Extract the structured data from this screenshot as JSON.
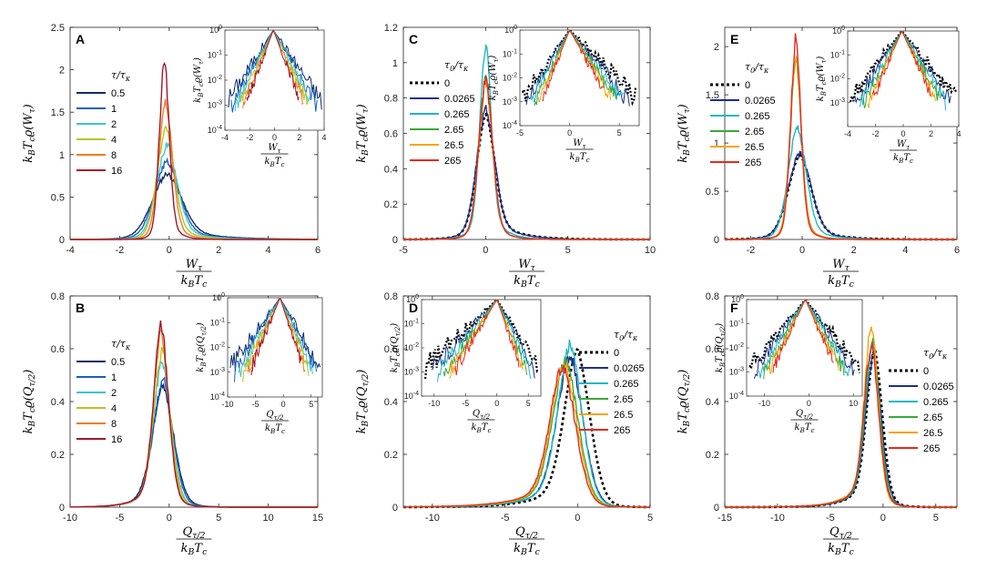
{
  "colors": {
    "series_tau": [
      "#0d2a6b",
      "#1560bd",
      "#3ec3d8",
      "#b9c41e",
      "#f07c1c",
      "#a3142a"
    ],
    "series_tau0": [
      "#000000",
      "#1a2f8c",
      "#1fb7c4",
      "#3aa83a",
      "#f5a40c",
      "#e8291c"
    ]
  },
  "labels": {
    "W_num": "W",
    "W_sub": "τ",
    "Q_num": "Q",
    "Q_sub": "τ/2",
    "den": "k",
    "den_sub1": "B",
    "den_mid": "T",
    "den_sub2": "c",
    "ylab_W": "kBTcϱ(Wτ)",
    "ylab_Q": "kBTcϱ(Qτ/2)",
    "legend_tau": "τ/τκ",
    "legend_tau0": "τ0/τκ"
  },
  "chart_data": [
    {
      "id": "A",
      "type": "line",
      "variable": "W",
      "xlim": [
        -4,
        6
      ],
      "xticks": [
        -4,
        -2,
        0,
        2,
        4,
        6
      ],
      "ylim": [
        0,
        2.5
      ],
      "yticks": [
        0,
        0.5,
        1,
        1.5,
        2,
        2.5
      ],
      "ylabel": "kBTcϱ(Wτ)",
      "xlabel": "Wτ / kBTc",
      "legend_title": "τ/τκ",
      "series": [
        {
          "name": "0.5",
          "peak_x": -0.1,
          "peak_y": 0.78,
          "width": 0.6,
          "tail_right": 1.4,
          "tail_left": 0.7
        },
        {
          "name": "1",
          "peak_x": -0.1,
          "peak_y": 0.93,
          "width": 0.5,
          "tail_right": 1.1,
          "tail_left": 0.6
        },
        {
          "name": "2",
          "peak_x": -0.1,
          "peak_y": 1.12,
          "width": 0.42,
          "tail_right": 0.9,
          "tail_left": 0.5
        },
        {
          "name": "4",
          "peak_x": -0.15,
          "peak_y": 1.32,
          "width": 0.35,
          "tail_right": 0.7,
          "tail_left": 0.4
        },
        {
          "name": "8",
          "peak_x": -0.15,
          "peak_y": 1.62,
          "width": 0.28,
          "tail_right": 0.5,
          "tail_left": 0.35
        },
        {
          "name": "16",
          "peak_x": -0.2,
          "peak_y": 2.15,
          "width": 0.2,
          "tail_right": 0.35,
          "tail_left": 0.25
        }
      ],
      "inset": {
        "xlim": [
          -4,
          4
        ],
        "xticks": [
          -4,
          -2,
          0,
          2,
          4
        ],
        "ylim_log": [
          -4,
          0
        ],
        "yticks": [
          "10^{0}",
          "10^{-1}",
          "10^{-2}",
          "10^{-3}",
          "10^{-4}"
        ],
        "ylabel": "kBTcϱ(Wτ)",
        "xlabel": "Wτ / kBTc"
      }
    },
    {
      "id": "B",
      "type": "line",
      "variable": "Q",
      "xlim": [
        -10,
        15
      ],
      "xticks": [
        -10,
        -5,
        0,
        5,
        10,
        15
      ],
      "ylim": [
        0,
        0.8
      ],
      "yticks": [
        0,
        0.2,
        0.4,
        0.6,
        0.8
      ],
      "ylabel": "kBTcϱ(Qτ/2)",
      "xlabel": "Qτ/2 / kBTc",
      "legend_title": "τ/τκ",
      "series": [
        {
          "name": "0.5",
          "peak_x": -0.6,
          "peak_y": 0.46,
          "width": 1.1,
          "tail_right": 1.3,
          "tail_left": 1.9
        },
        {
          "name": "1",
          "peak_x": -0.6,
          "peak_y": 0.49,
          "width": 1.0,
          "tail_right": 1.2,
          "tail_left": 1.8
        },
        {
          "name": "2",
          "peak_x": -0.7,
          "peak_y": 0.56,
          "width": 0.9,
          "tail_right": 1.1,
          "tail_left": 1.7
        },
        {
          "name": "4",
          "peak_x": -0.7,
          "peak_y": 0.6,
          "width": 0.85,
          "tail_right": 1.0,
          "tail_left": 1.7
        },
        {
          "name": "8",
          "peak_x": -0.8,
          "peak_y": 0.66,
          "width": 0.8,
          "tail_right": 1.0,
          "tail_left": 1.6
        },
        {
          "name": "16",
          "peak_x": -0.8,
          "peak_y": 0.7,
          "width": 0.75,
          "tail_right": 1.0,
          "tail_left": 1.6
        }
      ],
      "inset": {
        "xlim": [
          -10,
          7
        ],
        "xticks": [
          -10,
          -5,
          0,
          5
        ],
        "ylim_log": [
          -4,
          0
        ],
        "yticks": [
          "10^{0}",
          "10^{-1}",
          "10^{-2}",
          "10^{-3}",
          "10^{-4}"
        ],
        "ylabel": "kBTcϱ(Qτ/2)",
        "xlabel": "Qτ/2 / kBTc"
      }
    },
    {
      "id": "C",
      "type": "line",
      "variable": "W",
      "xlim": [
        -5,
        10
      ],
      "xticks": [
        -5,
        0,
        5,
        10
      ],
      "ylim": [
        0,
        1.2
      ],
      "yticks": [
        0,
        0.2,
        0.4,
        0.6,
        0.8,
        1,
        1.2
      ],
      "ylabel": "kBTcϱ(Wτ)",
      "xlabel": "Wτ / kBTc",
      "legend_title": "τ0/τκ",
      "series": [
        {
          "name": "0",
          "peak_x": 0.0,
          "peak_y": 0.71,
          "width": 0.55,
          "tail_right": 1.4,
          "tail_left": 0.8,
          "dashed": true
        },
        {
          "name": "0.0265",
          "peak_x": 0.0,
          "peak_y": 0.74,
          "width": 0.55,
          "tail_right": 1.3,
          "tail_left": 0.8
        },
        {
          "name": "0.265",
          "peak_x": 0.0,
          "peak_y": 1.1,
          "width": 0.35,
          "tail_right": 0.8,
          "tail_left": 0.6
        },
        {
          "name": "2.65",
          "peak_x": 0.0,
          "peak_y": 0.93,
          "width": 0.42,
          "tail_right": 0.7,
          "tail_left": 0.55
        },
        {
          "name": "26.5",
          "peak_x": 0.0,
          "peak_y": 0.9,
          "width": 0.42,
          "tail_right": 0.7,
          "tail_left": 0.55
        },
        {
          "name": "265",
          "peak_x": 0.0,
          "peak_y": 0.92,
          "width": 0.42,
          "tail_right": 0.7,
          "tail_left": 0.55
        }
      ],
      "inset": {
        "xlim": [
          -5,
          7
        ],
        "xticks": [
          -5,
          0,
          5
        ],
        "ylim_log": [
          -4,
          0
        ],
        "yticks": [
          "10^{0}",
          "10^{-1}",
          "10^{-2}",
          "10^{-3}",
          "10^{-4}"
        ],
        "ylabel": "kBTcϱ(Wτ)",
        "xlabel": "Wτ / kBTc"
      }
    },
    {
      "id": "D",
      "type": "line",
      "variable": "Q",
      "xlim": [
        -12,
        5
      ],
      "xticks": [
        -10,
        -5,
        0,
        5
      ],
      "ylim": [
        0,
        0.8
      ],
      "yticks": [
        0,
        0.2,
        0.4,
        0.6,
        0.8
      ],
      "ylabel": "kBTcϱ(Qτ/2)",
      "xlabel": "Qτ/2 / kBTc",
      "legend_title": "τ0/τκ",
      "series": [
        {
          "name": "0",
          "peak_x": 0.0,
          "peak_y": 0.6,
          "width": 0.9,
          "tail_right": 0.8,
          "tail_left": 2.0,
          "dashed": true
        },
        {
          "name": "0.0265",
          "peak_x": -0.5,
          "peak_y": 0.58,
          "width": 0.9,
          "tail_right": 0.9,
          "tail_left": 2.0
        },
        {
          "name": "0.265",
          "peak_x": -0.5,
          "peak_y": 0.62,
          "width": 0.85,
          "tail_right": 0.9,
          "tail_left": 2.0
        },
        {
          "name": "2.65",
          "peak_x": -0.8,
          "peak_y": 0.56,
          "width": 0.9,
          "tail_right": 0.9,
          "tail_left": 2.1
        },
        {
          "name": "26.5",
          "peak_x": -0.9,
          "peak_y": 0.55,
          "width": 0.9,
          "tail_right": 0.9,
          "tail_left": 2.2
        },
        {
          "name": "265",
          "peak_x": -1.0,
          "peak_y": 0.54,
          "width": 0.9,
          "tail_right": 0.9,
          "tail_left": 2.3
        }
      ],
      "inset": {
        "xlim": [
          -12,
          7
        ],
        "xticks": [
          -10,
          -5,
          0,
          5
        ],
        "ylim_log": [
          -4,
          0
        ],
        "yticks": [
          "10^{0}",
          "10^{-1}",
          "10^{-2}",
          "10^{-3}",
          "10^{-4}"
        ],
        "ylabel": "kBTcϱ(Qτ/2)",
        "xlabel": "Qτ/2 / kBTc"
      }
    },
    {
      "id": "E",
      "type": "line",
      "variable": "W",
      "xlim": [
        -3,
        6
      ],
      "xticks": [
        -2,
        0,
        2,
        4,
        6
      ],
      "ylim": [
        0,
        2.2
      ],
      "yticks": [
        0,
        0.5,
        1,
        1.5,
        2
      ],
      "ylabel": "kBTcϱ(Wτ)",
      "xlabel": "Wτ / kBTc",
      "legend_title": "τ0/τκ",
      "series": [
        {
          "name": "0",
          "peak_x": -0.1,
          "peak_y": 0.88,
          "width": 0.45,
          "tail_right": 0.9,
          "tail_left": 0.6,
          "dashed": true
        },
        {
          "name": "0.0265",
          "peak_x": -0.1,
          "peak_y": 0.9,
          "width": 0.45,
          "tail_right": 0.85,
          "tail_left": 0.6
        },
        {
          "name": "0.265",
          "peak_x": -0.2,
          "peak_y": 1.18,
          "width": 0.35,
          "tail_right": 0.7,
          "tail_left": 0.45
        },
        {
          "name": "2.65",
          "peak_x": -0.25,
          "peak_y": 1.85,
          "width": 0.22,
          "tail_right": 0.4,
          "tail_left": 0.3
        },
        {
          "name": "26.5",
          "peak_x": -0.25,
          "peak_y": 1.9,
          "width": 0.22,
          "tail_right": 0.4,
          "tail_left": 0.3
        },
        {
          "name": "265",
          "peak_x": -0.25,
          "peak_y": 2.1,
          "width": 0.2,
          "tail_right": 0.35,
          "tail_left": 0.28
        }
      ],
      "inset": {
        "xlim": [
          -4,
          4
        ],
        "xticks": [
          -4,
          -2,
          0,
          2,
          4
        ],
        "ylim_log": [
          -4,
          0
        ],
        "yticks": [
          "10^{0}",
          "10^{-1}",
          "10^{-2}",
          "10^{-3}"
        ],
        "ylabel": "kBTcϱ(Wτ)",
        "xlabel": "Wτ / kBTc"
      }
    },
    {
      "id": "F",
      "type": "line",
      "variable": "Q",
      "xlim": [
        -15,
        7
      ],
      "xticks": [
        -15,
        -10,
        -5,
        0,
        5
      ],
      "ylim": [
        0,
        0.8
      ],
      "yticks": [
        0,
        0.2,
        0.4,
        0.6,
        0.8
      ],
      "ylabel": "kBTcϱ(Qτ/2)",
      "xlabel": "Qτ/2 / kBTc",
      "legend_title": "τ0/τκ",
      "series": [
        {
          "name": "0",
          "peak_x": -0.8,
          "peak_y": 0.6,
          "width": 0.75,
          "tail_right": 0.9,
          "tail_left": 1.8,
          "dashed": true
        },
        {
          "name": "0.0265",
          "peak_x": -0.9,
          "peak_y": 0.58,
          "width": 0.75,
          "tail_right": 0.9,
          "tail_left": 1.8
        },
        {
          "name": "0.265",
          "peak_x": -1.0,
          "peak_y": 0.61,
          "width": 0.7,
          "tail_right": 0.9,
          "tail_left": 1.8
        },
        {
          "name": "2.65",
          "peak_x": -1.0,
          "peak_y": 0.63,
          "width": 0.7,
          "tail_right": 0.9,
          "tail_left": 1.8
        },
        {
          "name": "26.5",
          "peak_x": -1.1,
          "peak_y": 0.7,
          "width": 0.65,
          "tail_right": 0.85,
          "tail_left": 1.8
        },
        {
          "name": "265",
          "peak_x": -1.1,
          "peak_y": 0.62,
          "width": 0.7,
          "tail_right": 0.9,
          "tail_left": 1.8
        }
      ],
      "inset": {
        "xlim": [
          -14,
          12
        ],
        "xticks": [
          -10,
          0,
          10
        ],
        "ylim_log": [
          -4,
          0
        ],
        "yticks": [
          "10^{0}",
          "10^{-1}",
          "10^{-2}",
          "10^{-3}",
          "10^{-4}"
        ],
        "ylabel": "kBTcϱ(Qτ/2)",
        "xlabel": "Qτ/2 / kBTc"
      }
    }
  ]
}
